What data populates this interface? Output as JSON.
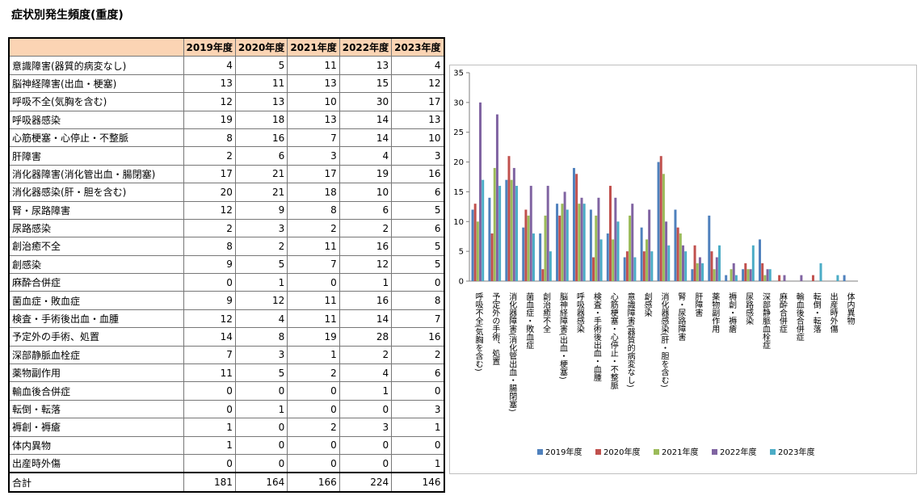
{
  "page": {
    "title": "症状別発生頻度(重度)"
  },
  "table": {
    "header_blank": "",
    "years": [
      "2019年度",
      "2020年度",
      "2021年度",
      "2022年度",
      "2023年度"
    ],
    "rows": [
      {
        "label": "意識障害(器質的病変なし)",
        "values": [
          4,
          5,
          11,
          13,
          4
        ]
      },
      {
        "label": "脳神経障害(出血・梗塞)",
        "values": [
          13,
          11,
          13,
          15,
          12
        ]
      },
      {
        "label": "呼吸不全(気胸を含む)",
        "values": [
          12,
          13,
          10,
          30,
          17
        ]
      },
      {
        "label": "呼吸器感染",
        "values": [
          19,
          18,
          13,
          14,
          13
        ]
      },
      {
        "label": "心筋梗塞・心停止・不整脈",
        "values": [
          8,
          16,
          7,
          14,
          10
        ]
      },
      {
        "label": "肝障害",
        "values": [
          2,
          6,
          3,
          4,
          3
        ]
      },
      {
        "label": "消化器障害(消化管出血・腸閉塞)",
        "values": [
          17,
          21,
          17,
          19,
          16
        ]
      },
      {
        "label": "消化器感染(肝・胆を含む)",
        "values": [
          20,
          21,
          18,
          10,
          6
        ]
      },
      {
        "label": "腎・尿路障害",
        "values": [
          12,
          9,
          8,
          6,
          5
        ]
      },
      {
        "label": "尿路感染",
        "values": [
          2,
          3,
          2,
          2,
          6
        ]
      },
      {
        "label": "創治癒不全",
        "values": [
          8,
          2,
          11,
          16,
          5
        ]
      },
      {
        "label": "創感染",
        "values": [
          9,
          5,
          7,
          12,
          5
        ]
      },
      {
        "label": "麻酔合併症",
        "values": [
          0,
          1,
          0,
          1,
          0
        ]
      },
      {
        "label": "菌血症・敗血症",
        "values": [
          9,
          12,
          11,
          16,
          8
        ]
      },
      {
        "label": "検査・手術後出血・血腫",
        "values": [
          12,
          4,
          11,
          14,
          7
        ]
      },
      {
        "label": "予定外の手術、処置",
        "values": [
          14,
          8,
          19,
          28,
          16
        ]
      },
      {
        "label": "深部静脈血栓症",
        "values": [
          7,
          3,
          1,
          2,
          2
        ]
      },
      {
        "label": "薬物副作用",
        "values": [
          11,
          5,
          2,
          4,
          6
        ]
      },
      {
        "label": "輸血後合併症",
        "values": [
          0,
          0,
          0,
          1,
          0
        ]
      },
      {
        "label": "転倒・転落",
        "values": [
          0,
          1,
          0,
          0,
          3
        ]
      },
      {
        "label": "褥創・褥瘡",
        "values": [
          1,
          0,
          2,
          3,
          1
        ]
      },
      {
        "label": "体内異物",
        "values": [
          1,
          0,
          0,
          0,
          0
        ]
      },
      {
        "label": "出産時外傷",
        "values": [
          0,
          0,
          0,
          0,
          1
        ]
      }
    ],
    "total": {
      "label": "合計",
      "values": [
        181,
        164,
        166,
        224,
        146
      ]
    }
  },
  "chart_data": {
    "type": "bar",
    "title": "",
    "xlabel": "",
    "ylabel": "",
    "ylim": [
      0,
      35
    ],
    "yticks": [
      0,
      5,
      10,
      15,
      20,
      25,
      30,
      35
    ],
    "legend_position": "bottom",
    "grid": false,
    "categories": [
      "呼吸不全(気胸を含む)",
      "予定外の手術、処置",
      "消化器障害(消化管出血・腸閉塞)",
      "菌血症・敗血症",
      "創治癒不全",
      "脳神経障害(出血・梗塞)",
      "呼吸器感染",
      "検査・手術後出血・血腫",
      "心筋梗塞・心停止・不整脈",
      "意識障害(器質的病変なし)",
      "創感染",
      "消化器感染(肝・胆を含む)",
      "腎・尿路障害",
      "肝障害",
      "薬物副作用",
      "褥創・褥瘡",
      "尿路感染",
      "深部静脈血栓症",
      "麻酔合併症",
      "輸血後合併症",
      "転倒・転落",
      "出産時外傷",
      "体内異物"
    ],
    "series": [
      {
        "name": "2019年度",
        "color": "#4f81bd",
        "values": [
          12,
          14,
          17,
          9,
          8,
          13,
          19,
          12,
          8,
          4,
          9,
          20,
          12,
          2,
          11,
          1,
          2,
          7,
          0,
          0,
          0,
          0,
          1
        ]
      },
      {
        "name": "2020年度",
        "color": "#c0504d",
        "values": [
          13,
          8,
          21,
          12,
          2,
          11,
          18,
          4,
          16,
          5,
          5,
          21,
          9,
          6,
          5,
          0,
          3,
          3,
          1,
          0,
          1,
          0,
          0
        ]
      },
      {
        "name": "2021年度",
        "color": "#9bbb59",
        "values": [
          10,
          19,
          17,
          11,
          11,
          13,
          13,
          11,
          7,
          11,
          7,
          18,
          8,
          3,
          2,
          2,
          2,
          1,
          0,
          0,
          0,
          0,
          0
        ]
      },
      {
        "name": "2022年度",
        "color": "#8064a2",
        "values": [
          30,
          28,
          19,
          16,
          16,
          15,
          14,
          14,
          14,
          13,
          12,
          10,
          6,
          4,
          4,
          3,
          2,
          2,
          1,
          1,
          0,
          0,
          0
        ]
      },
      {
        "name": "2023年度",
        "color": "#4bacc6",
        "values": [
          17,
          16,
          16,
          8,
          5,
          12,
          13,
          7,
          10,
          4,
          5,
          6,
          5,
          3,
          6,
          1,
          6,
          2,
          0,
          0,
          3,
          1,
          0
        ]
      }
    ]
  }
}
